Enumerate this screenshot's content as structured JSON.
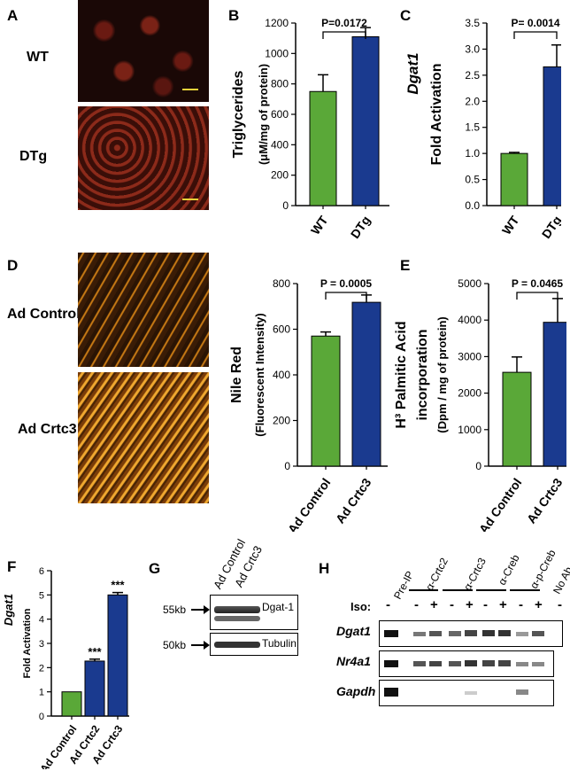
{
  "panels": {
    "A": {
      "letter": "A",
      "image_labels": [
        "WT",
        "DTg"
      ]
    },
    "B": {
      "letter": "B",
      "chart_index": 0
    },
    "C": {
      "letter": "C",
      "chart_index": 1
    },
    "D": {
      "letter": "D",
      "image_labels": [
        "Ad Control",
        "Ad Crtc3"
      ],
      "chart_index": 2
    },
    "E": {
      "letter": "E",
      "chart_index": 3
    },
    "F": {
      "letter": "F",
      "chart_index": 4
    },
    "G": {
      "letter": "G",
      "columns": [
        "Ad Control",
        "Ad Crtc3"
      ],
      "rows": [
        {
          "marker": "55kb",
          "label": "Dgat-1"
        },
        {
          "marker": "50kb",
          "label": "Tubulin"
        }
      ]
    },
    "H": {
      "letter": "H",
      "columns": [
        "Pre-IP",
        "α-Crtc2",
        "α-Crtc3",
        "α-Creb",
        "α-p-Creb",
        "No Ab"
      ],
      "iso_label": "Iso:",
      "iso_signs": [
        "-",
        "-",
        "+",
        "-",
        "+",
        "-",
        "+",
        "-",
        "+",
        "-"
      ],
      "genes": [
        "Dgat1",
        "Nr4a1",
        "Gapdh"
      ]
    }
  },
  "colors": {
    "green": "#5aa838",
    "blue": "#1a3a8f",
    "micro_red": "#b8382c",
    "micro_orange": "#e89a1c"
  },
  "chart_data": [
    {
      "type": "bar",
      "categories": [
        "WT",
        "DTg"
      ],
      "values": [
        750,
        1110
      ],
      "errors": [
        110,
        60
      ],
      "ylabel": "Triglycerides",
      "ylabel2": "(μM/mg of protein)",
      "ylim": [
        0,
        1200
      ],
      "yticks": [
        "0",
        "200",
        "400",
        "600",
        "800",
        "1000",
        "1200"
      ],
      "annotation": "P=0.0172"
    },
    {
      "type": "bar",
      "categories": [
        "WT",
        "DTg"
      ],
      "values": [
        1.0,
        2.66
      ],
      "errors": [
        0.02,
        0.42
      ],
      "ylabel_italic": "Dgat1",
      "ylabel": "Fold Activation",
      "ylim": [
        0,
        3.5
      ],
      "yticks": [
        "0.0",
        "0.5",
        "1.0",
        "1.5",
        "2.0",
        "2.5",
        "3.0",
        "3.5"
      ],
      "annotation": "P= 0.0014"
    },
    {
      "type": "bar",
      "categories": [
        "Ad Control",
        "Ad Crtc3"
      ],
      "values": [
        570,
        718
      ],
      "errors": [
        18,
        32
      ],
      "ylabel": "Nile Red",
      "ylabel2": "(Fluorescent Intensity)",
      "ylim": [
        0,
        800
      ],
      "yticks": [
        "0",
        "200",
        "400",
        "600",
        "800"
      ],
      "annotation": "P = 0.0005"
    },
    {
      "type": "bar",
      "categories": [
        "Ad Control",
        "Ad Crtc3"
      ],
      "values": [
        2570,
        3940
      ],
      "errors": [
        420,
        650
      ],
      "ylabel": "H³ Palmitic Acid",
      "ylabel_mid": "incorporation",
      "ylabel2": "(Dpm / mg of protein)",
      "ylim": [
        0,
        5000
      ],
      "yticks": [
        "0",
        "1000",
        "2000",
        "3000",
        "4000",
        "5000"
      ],
      "annotation": "P = 0.0465"
    },
    {
      "type": "bar",
      "categories": [
        "Ad Control",
        "Ad Crtc2",
        "Ad Crtc3"
      ],
      "values": [
        1.0,
        2.27,
        5.0
      ],
      "errors": [
        0,
        0.08,
        0.1
      ],
      "ylabel_italic": "Dgat1",
      "ylabel": "Fold Activation",
      "ylim": [
        0,
        6
      ],
      "yticks": [
        "0",
        "1",
        "2",
        "3",
        "4",
        "5",
        "6"
      ],
      "stars": [
        "",
        "***",
        "***"
      ]
    }
  ]
}
